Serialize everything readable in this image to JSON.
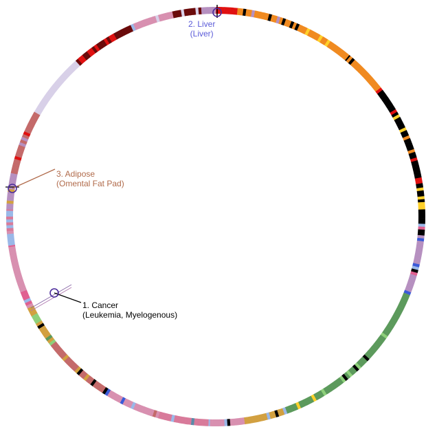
{
  "colors": {
    "cancer": "#000000",
    "liver": "#5a5ad8",
    "adipose": "#b06a4a",
    "marker_circle": "#4a2a9a"
  },
  "labels": [
    {
      "id": "cancer",
      "number_title": "1. Cancer",
      "subtitle": "(Leukemia, Myelogenous)"
    },
    {
      "id": "liver",
      "number_title": "2. Liver",
      "subtitle": "(Liver)"
    },
    {
      "id": "adipose",
      "number_title": "3. Adipose",
      "subtitle": "(Omental Fat Pad)"
    }
  ],
  "segment_palette": [
    "#e01010",
    "#f08a20",
    "#000000",
    "#ffd02a",
    "#9ab8e8",
    "#5c9a5c",
    "#8ed07a",
    "#d2a040",
    "#d87a9a",
    "#b690c0",
    "#c46a6a",
    "#6a0a0a",
    "#d8d0e8",
    "#d890b0",
    "#3a5ad8",
    "#5a8aa8",
    "#e06090"
  ]
}
